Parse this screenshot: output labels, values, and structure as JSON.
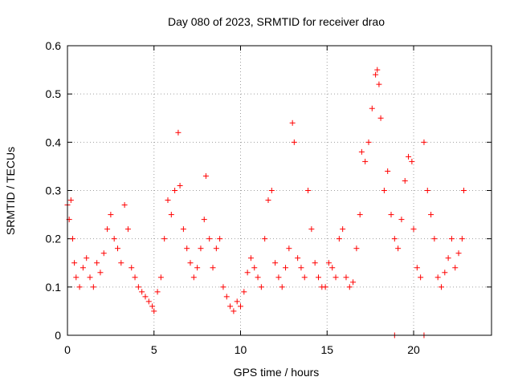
{
  "chart_data": {
    "type": "scatter",
    "title": "Day 080 of 2023, SRMTID for receiver drao",
    "xlabel": "GPS time / hours",
    "ylabel": "SRMTID / TECUs",
    "xlim": [
      0,
      24.5
    ],
    "ylim": [
      0,
      0.6
    ],
    "xticks": [
      0,
      5,
      10,
      15,
      20
    ],
    "xtick_labels": [
      "0",
      "5",
      "10",
      "15",
      "20"
    ],
    "yticks": [
      0,
      0.1,
      0.2,
      0.3,
      0.4,
      0.5,
      0.6
    ],
    "ytick_labels": [
      "0",
      "0.1",
      "0.2",
      "0.3",
      "0.4",
      "0.5",
      "0.6"
    ],
    "grid": true,
    "marker": "plus",
    "color": "#ff0000",
    "series": [
      {
        "name": "SRMTID",
        "x": [
          0.0,
          0.1,
          0.2,
          0.3,
          0.4,
          0.5,
          0.7,
          0.9,
          1.1,
          1.3,
          1.5,
          1.7,
          1.9,
          2.1,
          2.3,
          2.5,
          2.7,
          2.9,
          3.1,
          3.3,
          3.5,
          3.7,
          3.9,
          4.1,
          4.3,
          4.5,
          4.7,
          4.9,
          5.0,
          5.2,
          5.4,
          5.6,
          5.8,
          6.0,
          6.2,
          6.4,
          6.5,
          6.7,
          6.9,
          7.1,
          7.3,
          7.5,
          7.7,
          7.9,
          8.0,
          8.2,
          8.4,
          8.6,
          8.8,
          9.0,
          9.2,
          9.4,
          9.6,
          9.8,
          10.0,
          10.2,
          10.4,
          10.6,
          10.8,
          11.0,
          11.2,
          11.4,
          11.6,
          11.8,
          12.0,
          12.2,
          12.4,
          12.6,
          12.8,
          13.0,
          13.1,
          13.3,
          13.5,
          13.7,
          13.9,
          14.1,
          14.3,
          14.5,
          14.7,
          14.9,
          15.1,
          15.3,
          15.5,
          15.7,
          15.9,
          16.1,
          16.3,
          16.5,
          16.7,
          16.9,
          17.0,
          17.2,
          17.4,
          17.6,
          17.8,
          17.9,
          18.0,
          18.1,
          18.3,
          18.5,
          18.7,
          18.9,
          19.1,
          19.3,
          19.5,
          19.7,
          19.9,
          20.0,
          20.2,
          20.4,
          20.6,
          20.8,
          21.0,
          21.2,
          21.4,
          21.6,
          21.8,
          22.0,
          22.2,
          22.4,
          22.6,
          22.8,
          22.9,
          18.9,
          20.6
        ],
        "y": [
          0.27,
          0.24,
          0.28,
          0.2,
          0.15,
          0.12,
          0.1,
          0.14,
          0.16,
          0.12,
          0.1,
          0.15,
          0.13,
          0.17,
          0.22,
          0.25,
          0.2,
          0.18,
          0.15,
          0.27,
          0.22,
          0.14,
          0.12,
          0.1,
          0.09,
          0.08,
          0.07,
          0.06,
          0.05,
          0.09,
          0.12,
          0.2,
          0.28,
          0.25,
          0.3,
          0.42,
          0.31,
          0.22,
          0.18,
          0.15,
          0.12,
          0.14,
          0.18,
          0.24,
          0.33,
          0.2,
          0.14,
          0.18,
          0.2,
          0.1,
          0.08,
          0.06,
          0.05,
          0.07,
          0.06,
          0.09,
          0.13,
          0.16,
          0.14,
          0.12,
          0.1,
          0.2,
          0.28,
          0.3,
          0.15,
          0.12,
          0.1,
          0.14,
          0.18,
          0.44,
          0.4,
          0.16,
          0.14,
          0.12,
          0.3,
          0.22,
          0.15,
          0.12,
          0.1,
          0.1,
          0.15,
          0.14,
          0.12,
          0.2,
          0.22,
          0.12,
          0.1,
          0.11,
          0.18,
          0.25,
          0.38,
          0.36,
          0.4,
          0.47,
          0.54,
          0.55,
          0.52,
          0.45,
          0.3,
          0.34,
          0.25,
          0.2,
          0.18,
          0.24,
          0.32,
          0.37,
          0.36,
          0.22,
          0.14,
          0.12,
          0.4,
          0.3,
          0.25,
          0.2,
          0.12,
          0.1,
          0.13,
          0.16,
          0.2,
          0.14,
          0.17,
          0.2,
          0.3,
          0.0,
          0.0
        ]
      }
    ]
  }
}
